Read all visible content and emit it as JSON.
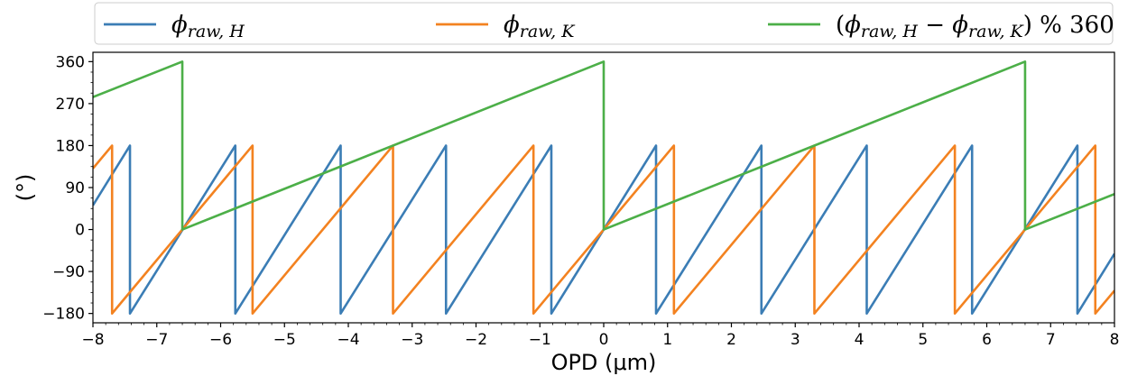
{
  "chart_data": {
    "type": "line",
    "xlabel": "OPD (μm)",
    "ylabel": "(°)",
    "xlim": [
      -8,
      8
    ],
    "ylim": [
      -200,
      380
    ],
    "xticks": [
      -8,
      -7,
      -6,
      -5,
      -4,
      -3,
      -2,
      -1,
      0,
      1,
      2,
      3,
      4,
      5,
      6,
      7,
      8
    ],
    "yticks": [
      -180,
      -90,
      0,
      90,
      180,
      270,
      360
    ],
    "xtick_labels": [
      "−8",
      "−7",
      "−6",
      "−5",
      "−4",
      "−3",
      "−2",
      "−1",
      "0",
      "1",
      "2",
      "3",
      "4",
      "5",
      "6",
      "7",
      "8"
    ],
    "ytick_labels": [
      "−180",
      "−90",
      "0",
      "90",
      "180",
      "270",
      "360"
    ],
    "grid": false,
    "legend_position": "top-outside",
    "series": [
      {
        "name": "ϕraw,H",
        "color": "#3b7db5",
        "x": [
          -8,
          -7.42,
          -7.42,
          -5.77,
          -5.77,
          -4.12,
          -4.12,
          -2.47,
          -2.47,
          -0.82,
          -0.82,
          0.82,
          0.82,
          2.47,
          2.47,
          4.12,
          4.12,
          5.77,
          5.77,
          7.42,
          7.42,
          8
        ],
        "values": [
          52,
          180,
          -180,
          180,
          -180,
          180,
          -180,
          180,
          -180,
          180,
          -180,
          180,
          -180,
          180,
          -180,
          180,
          -180,
          180,
          -180,
          180,
          -180,
          -52
        ]
      },
      {
        "name": "ϕraw,K",
        "color": "#f38220",
        "x": [
          -8,
          -7.7,
          -7.7,
          -5.5,
          -5.5,
          -3.3,
          -3.3,
          -1.1,
          -1.1,
          1.1,
          1.1,
          3.3,
          3.3,
          5.5,
          5.5,
          7.7,
          7.7,
          8
        ],
        "values": [
          131,
          180,
          -180,
          180,
          -180,
          180,
          -180,
          180,
          -180,
          180,
          -180,
          180,
          -180,
          180,
          -180,
          180,
          -180,
          -131
        ]
      },
      {
        "name": "(ϕraw,H − ϕraw,K) % 360",
        "color": "#4caf48",
        "x": [
          -8,
          -6.6,
          -6.6,
          0,
          0,
          6.6,
          6.6,
          8
        ],
        "values": [
          284,
          360,
          0,
          360,
          0,
          360,
          0,
          76
        ]
      }
    ]
  }
}
